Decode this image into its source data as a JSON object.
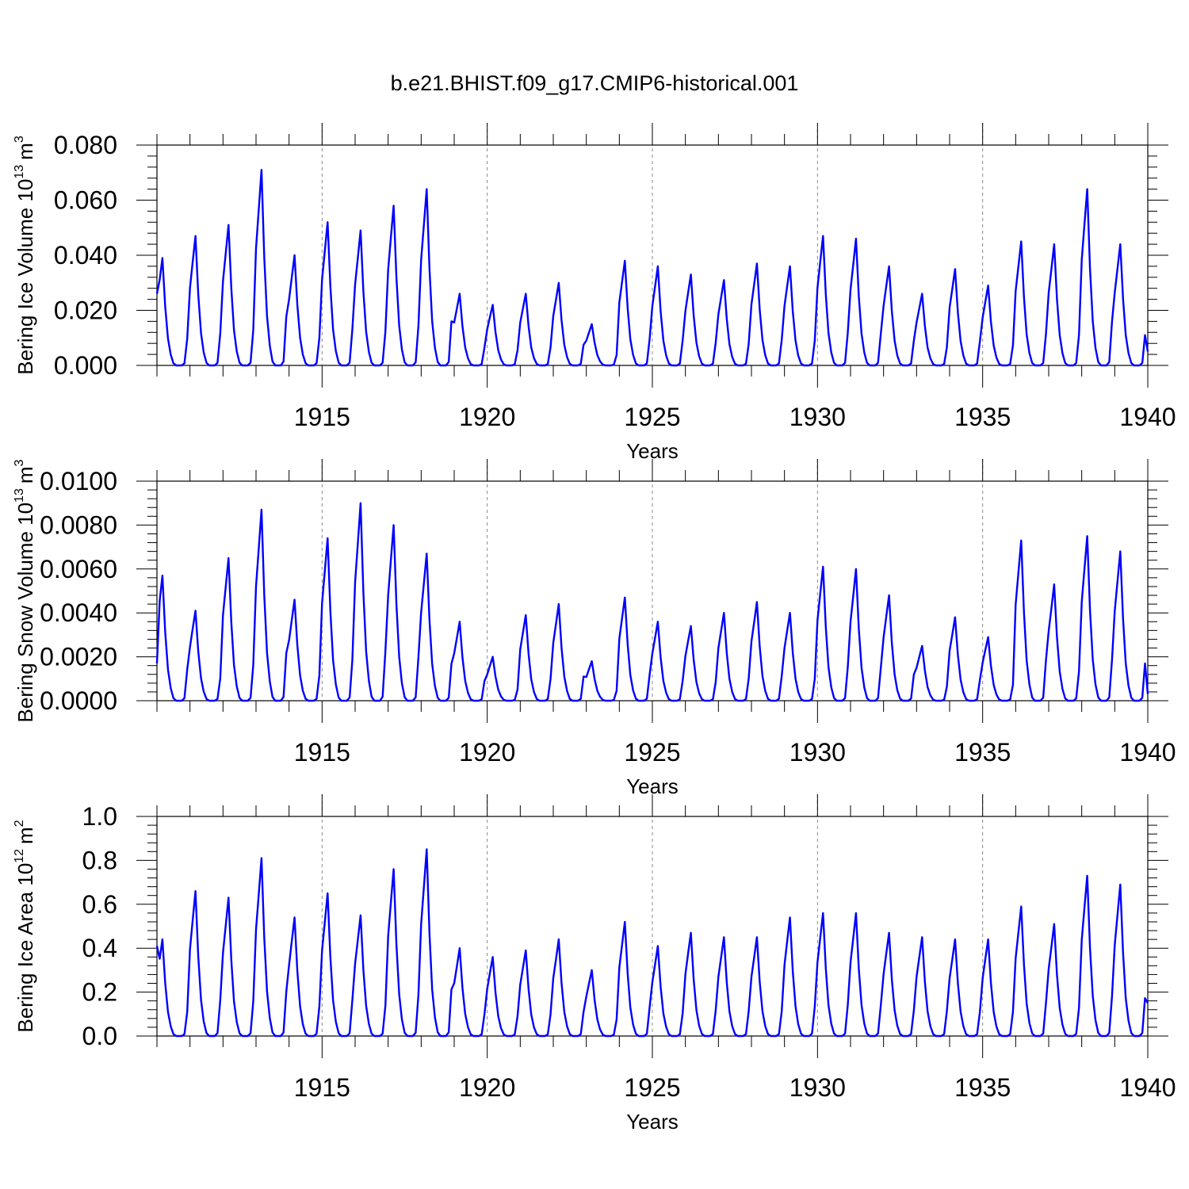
{
  "title": "b.e21.BHIST.f09_g17.CMIP6-historical.001",
  "line_color": "#0000ff",
  "grid_color": "#888888",
  "chart_data": [
    {
      "type": "line",
      "ylabel": "Bering Ice Volume 10",
      "ylabel_exp": "13",
      "ylabel_unit": "m",
      "ylabel_unit_exp": "3",
      "xlabel": "Years",
      "xlim": [
        1910.0,
        1940.0
      ],
      "ylim": [
        0.0,
        0.08
      ],
      "y_ticks": [
        "0.000",
        "0.020",
        "0.040",
        "0.060",
        "0.080"
      ],
      "y_tick_values": [
        0.0,
        0.02,
        0.04,
        0.06,
        0.08
      ],
      "y_minor_step": 0.004,
      "x_tick_values": [
        1915,
        1920,
        1925,
        1930,
        1935,
        1940
      ],
      "x_ticks": [
        "1915",
        "1920",
        "1925",
        "1930",
        "1935",
        "1940"
      ],
      "grid_x": [
        1915,
        1920,
        1925,
        1930,
        1935
      ],
      "peaks": [
        0.039,
        0.047,
        0.051,
        0.071,
        0.04,
        0.052,
        0.049,
        0.058,
        0.064,
        0.026,
        0.022,
        0.026,
        0.03,
        0.015,
        0.038,
        0.036,
        0.033,
        0.031,
        0.037,
        0.036,
        0.047,
        0.046,
        0.036,
        0.026,
        0.035,
        0.029,
        0.045,
        0.044,
        0.064,
        0.044
      ],
      "start_value": 0.026,
      "end_value": 0.005
    },
    {
      "type": "line",
      "ylabel": "Bering Snow Volume 10",
      "ylabel_exp": "13",
      "ylabel_unit": "m",
      "ylabel_unit_exp": "3",
      "xlabel": "Years",
      "xlim": [
        1910.0,
        1940.0
      ],
      "ylim": [
        0.0,
        0.01
      ],
      "y_ticks": [
        "0.0000",
        "0.0020",
        "0.0040",
        "0.0060",
        "0.0080",
        "0.0100"
      ],
      "y_tick_values": [
        0.0,
        0.002,
        0.004,
        0.006,
        0.008,
        0.01
      ],
      "y_minor_step": 0.0004,
      "x_tick_values": [
        1915,
        1920,
        1925,
        1930,
        1935,
        1940
      ],
      "x_ticks": [
        "1915",
        "1920",
        "1925",
        "1930",
        "1935",
        "1940"
      ],
      "grid_x": [
        1915,
        1920,
        1925,
        1930,
        1935
      ],
      "peaks": [
        0.0057,
        0.0041,
        0.0065,
        0.0087,
        0.0046,
        0.0074,
        0.009,
        0.008,
        0.0067,
        0.0036,
        0.002,
        0.0039,
        0.0044,
        0.0018,
        0.0047,
        0.0036,
        0.0034,
        0.004,
        0.0045,
        0.004,
        0.0061,
        0.006,
        0.0048,
        0.0025,
        0.0038,
        0.0029,
        0.0073,
        0.0053,
        0.0075,
        0.0068
      ],
      "start_value": 0.0017,
      "end_value": 0.0003
    },
    {
      "type": "line",
      "ylabel": "Bering Ice Area 10",
      "ylabel_exp": "12",
      "ylabel_unit": "m",
      "ylabel_unit_exp": "2",
      "xlabel": "Years",
      "xlim": [
        1910.0,
        1940.0
      ],
      "ylim": [
        0.0,
        1.0
      ],
      "y_ticks": [
        "0.0",
        "0.2",
        "0.4",
        "0.6",
        "0.8",
        "1.0"
      ],
      "y_tick_values": [
        0.0,
        0.2,
        0.4,
        0.6,
        0.8,
        1.0
      ],
      "y_minor_step": 0.04,
      "x_tick_values": [
        1915,
        1920,
        1925,
        1930,
        1935,
        1940
      ],
      "x_ticks": [
        "1915",
        "1920",
        "1925",
        "1930",
        "1935",
        "1940"
      ],
      "grid_x": [
        1915,
        1920,
        1925,
        1930,
        1935
      ],
      "peaks": [
        0.44,
        0.66,
        0.63,
        0.81,
        0.54,
        0.65,
        0.55,
        0.76,
        0.85,
        0.4,
        0.36,
        0.39,
        0.44,
        0.3,
        0.52,
        0.41,
        0.47,
        0.45,
        0.45,
        0.54,
        0.56,
        0.56,
        0.47,
        0.45,
        0.44,
        0.44,
        0.59,
        0.51,
        0.73,
        0.69
      ],
      "start_value": 0.41,
      "end_value": 0.15
    }
  ]
}
